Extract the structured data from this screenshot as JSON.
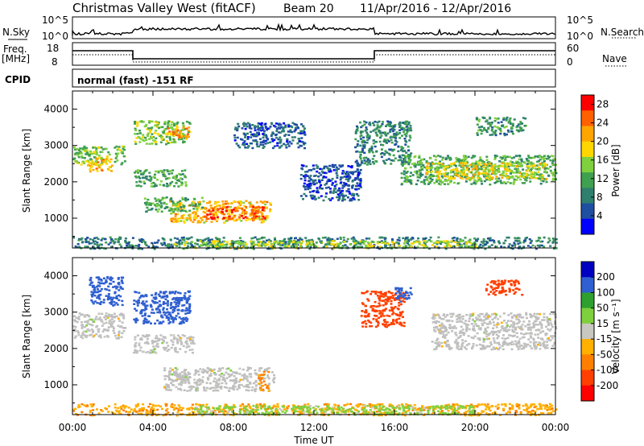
{
  "title": "Christmas Valley West (fitACF)",
  "beam": "Beam 20",
  "date_range": "11/Apr/2016 - 12/Apr/2016",
  "strip_labels": {
    "nsky": "N.Sky",
    "freq_line1": "Freq.",
    "freq_line2": "[MHz]",
    "cpid": "CPID",
    "nsearch": "N.Search",
    "nave": "Nave"
  },
  "nsky_ticks": [
    "10^5",
    "10^0"
  ],
  "nsearch_ticks": [
    "10^5",
    "10^0"
  ],
  "freq_ticks": [
    "18",
    "8"
  ],
  "nave_ticks": [
    "60",
    "0"
  ],
  "cpid_text": "normal (fast) -151 RF",
  "colors": {
    "power": [
      "#0000ff",
      "#1f4fa0",
      "#2f7f6f",
      "#3fa04f",
      "#7fd03f",
      "#ffd700",
      "#ffa500",
      "#ff6000",
      "#ff0000"
    ],
    "velocity": [
      "#0000c0",
      "#2f5fd0",
      "#2fa02f",
      "#7fd03f",
      "#c8c8c0",
      "#ffb000",
      "#ff8000",
      "#ff4000",
      "#ff0000"
    ],
    "ground_scatter": "#bfbfbf"
  },
  "chart_data": [
    {
      "type": "heatmap",
      "name": "power",
      "ylabel": "Slant Range [km]",
      "yticks": [
        1000,
        2000,
        3000,
        4000
      ],
      "ylim": [
        180,
        4500
      ],
      "xlim": [
        0,
        24
      ],
      "colorbar_label": "Power [dB]",
      "colorbar_ticks": [
        4,
        8,
        12,
        16,
        20,
        24,
        28
      ],
      "colorbar_range": [
        0,
        30
      ],
      "patches": [
        {
          "t": [
            0.0,
            2.6
          ],
          "r": [
            2500,
            3000
          ],
          "v": 14
        },
        {
          "t": [
            0.7,
            2.0
          ],
          "r": [
            2300,
            2700
          ],
          "v": 20
        },
        {
          "t": [
            3.0,
            5.8
          ],
          "r": [
            3050,
            3700
          ],
          "v": 14
        },
        {
          "t": [
            4.6,
            5.8
          ],
          "r": [
            3200,
            3550
          ],
          "v": 22
        },
        {
          "t": [
            3.0,
            5.6
          ],
          "r": [
            1900,
            2350
          ],
          "v": 12
        },
        {
          "t": [
            4.8,
            9.8
          ],
          "r": [
            900,
            1500
          ],
          "v": 20
        },
        {
          "t": [
            6.5,
            9.5
          ],
          "r": [
            1000,
            1350
          ],
          "v": 26
        },
        {
          "t": [
            3.5,
            6.5
          ],
          "r": [
            1200,
            1600
          ],
          "v": 12
        },
        {
          "t": [
            8.0,
            11.5
          ],
          "r": [
            2950,
            3650
          ],
          "v": 6
        },
        {
          "t": [
            14.0,
            16.8
          ],
          "r": [
            2500,
            3700
          ],
          "v": 9
        },
        {
          "t": [
            11.3,
            14.3
          ],
          "r": [
            1500,
            2500
          ],
          "v": 5
        },
        {
          "t": [
            16.3,
            24.0
          ],
          "r": [
            1950,
            2750
          ],
          "v": 12
        },
        {
          "t": [
            17.5,
            23.5
          ],
          "r": [
            2100,
            2550
          ],
          "v": 18
        },
        {
          "t": [
            20.0,
            22.5
          ],
          "r": [
            3300,
            3800
          ],
          "v": 10
        },
        {
          "t": [
            0.0,
            24.0
          ],
          "r": [
            180,
            500
          ],
          "v": 8
        },
        {
          "t": [
            5.0,
            20.0
          ],
          "r": [
            200,
            400
          ],
          "v": 16
        }
      ]
    },
    {
      "type": "heatmap",
      "name": "velocity",
      "ylabel": "Slant Range [km]",
      "xlabel": "Time UT",
      "yticks": [
        1000,
        2000,
        3000,
        4000
      ],
      "ylim": [
        180,
        4500
      ],
      "xlim": [
        0,
        24
      ],
      "xticks": [
        "00:00",
        "04:00",
        "08:00",
        "12:00",
        "16:00",
        "20:00",
        "00:00"
      ],
      "colorbar_label": "Velocity [m s⁻¹]",
      "colorbar_ticks": [
        200,
        100,
        50,
        15,
        -15,
        -50,
        -100,
        -200
      ],
      "colorbar_range": [
        -250,
        250
      ],
      "patches": [
        {
          "t": [
            0.0,
            2.6
          ],
          "r": [
            2300,
            3000
          ],
          "v": 0
        },
        {
          "t": [
            0.8,
            2.5
          ],
          "r": [
            3200,
            4000
          ],
          "v": 180
        },
        {
          "t": [
            3.0,
            5.8
          ],
          "r": [
            2700,
            3600
          ],
          "v": 150
        },
        {
          "t": [
            3.0,
            6.0
          ],
          "r": [
            1900,
            2400
          ],
          "v": 0
        },
        {
          "t": [
            4.5,
            10.0
          ],
          "r": [
            850,
            1500
          ],
          "v": 0
        },
        {
          "t": [
            9.2,
            9.7
          ],
          "r": [
            850,
            1400
          ],
          "v": -60
        },
        {
          "t": [
            14.3,
            16.5
          ],
          "r": [
            2600,
            3600
          ],
          "v": -180
        },
        {
          "t": [
            16.0,
            16.8
          ],
          "r": [
            3300,
            3700
          ],
          "v": 160
        },
        {
          "t": [
            17.8,
            24.0
          ],
          "r": [
            2000,
            3000
          ],
          "v": 0
        },
        {
          "t": [
            20.5,
            22.3
          ],
          "r": [
            3500,
            3900
          ],
          "v": -160
        },
        {
          "t": [
            0.0,
            24.0
          ],
          "r": [
            180,
            500
          ],
          "v": -40
        },
        {
          "t": [
            6.0,
            20.0
          ],
          "r": [
            200,
            450
          ],
          "v": 30
        }
      ]
    }
  ]
}
